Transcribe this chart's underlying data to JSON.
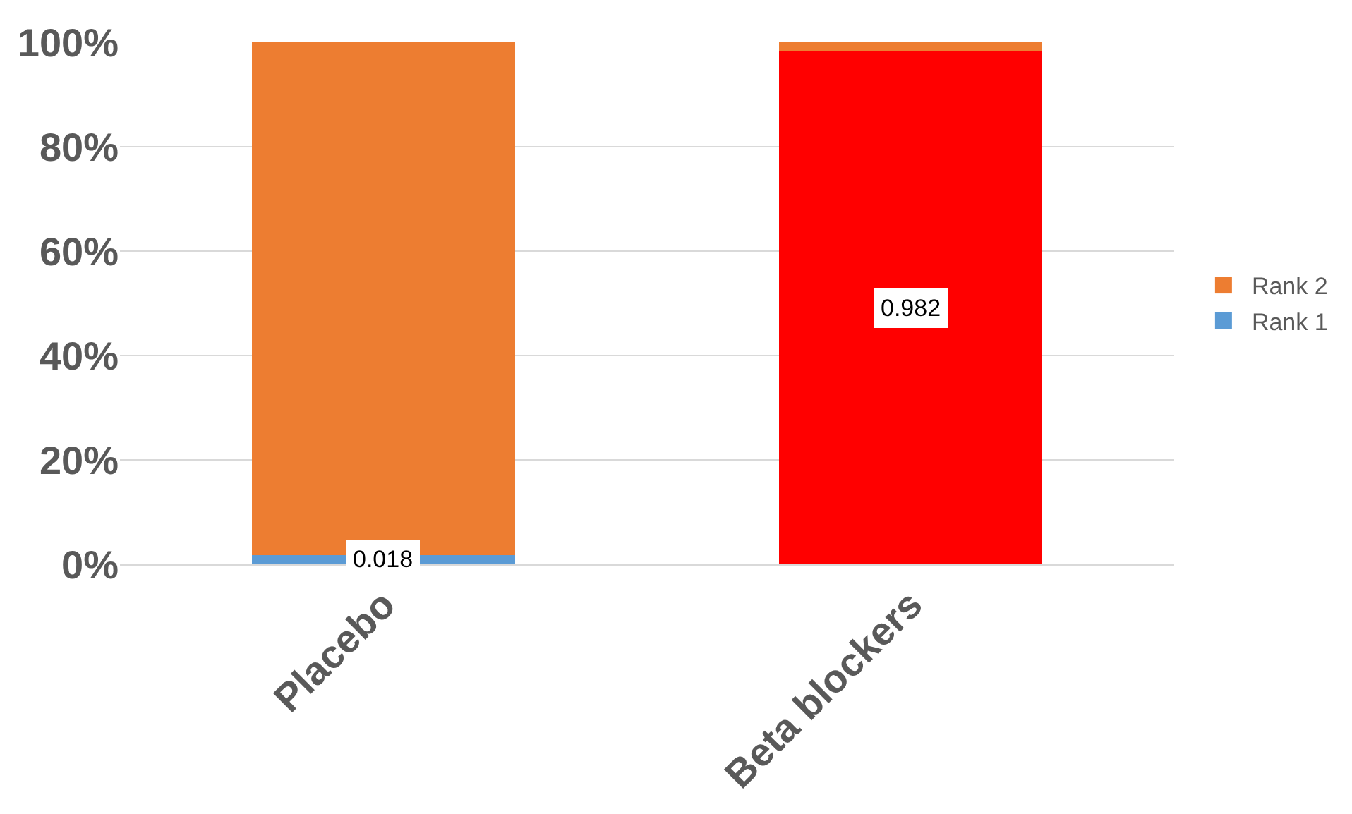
{
  "chart_data": {
    "type": "bar",
    "stacked": true,
    "categories": [
      "Placebo",
      "Beta blockers"
    ],
    "series": [
      {
        "name": "Rank 1",
        "color": "#5b9bd5",
        "colors": [
          "#5b9bd5",
          "#ff0000"
        ],
        "values": [
          0.018,
          0.982
        ],
        "value_labels": [
          "0.018",
          "0.982"
        ]
      },
      {
        "name": "Rank 2",
        "color": "#ed7d31",
        "colors": [
          "#ed7d31",
          "#ed7d31"
        ],
        "values": [
          0.982,
          0.018
        ],
        "value_labels": [
          null,
          null
        ]
      }
    ],
    "ylim": [
      0,
      1
    ],
    "yticks": [
      {
        "value": 0,
        "label": "0%"
      },
      {
        "value": 0.2,
        "label": "20%"
      },
      {
        "value": 0.4,
        "label": "40%"
      },
      {
        "value": 0.6,
        "label": "60%"
      },
      {
        "value": 0.8,
        "label": "80%"
      },
      {
        "value": 1,
        "label": "100%"
      }
    ],
    "grid": "y",
    "legend": "right"
  }
}
